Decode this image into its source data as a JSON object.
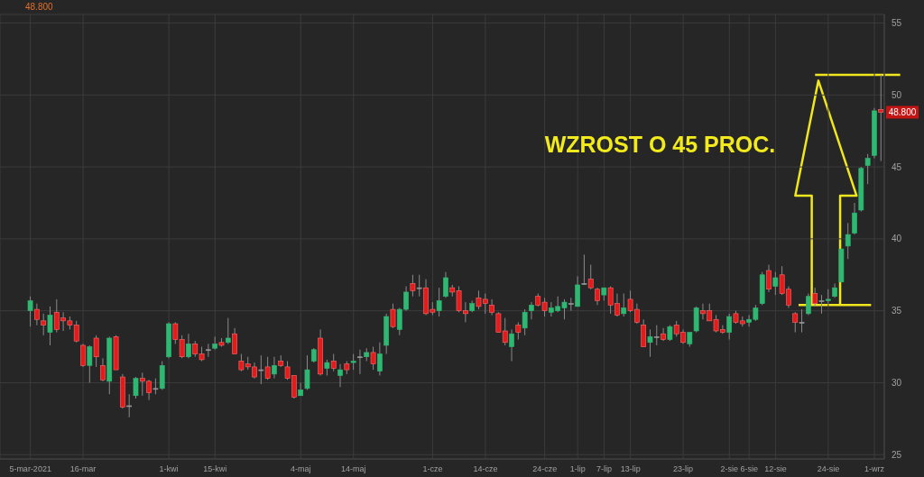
{
  "chart_data": {
    "type": "candlestick",
    "title": "48.800",
    "categories": [
      "5-mar-2021",
      null,
      null,
      null,
      null,
      null,
      null,
      null,
      "16-mar",
      null,
      null,
      null,
      null,
      null,
      null,
      null,
      null,
      null,
      null,
      null,
      null,
      "1-kwi",
      null,
      null,
      null,
      null,
      null,
      null,
      "15-kwi",
      null,
      null,
      null,
      null,
      null,
      null,
      null,
      null,
      null,
      null,
      null,
      null,
      "4-maj",
      null,
      null,
      null,
      null,
      null,
      null,
      null,
      "14-maj",
      null,
      null,
      null,
      null,
      null,
      null,
      null,
      null,
      null,
      null,
      null,
      "1-cze",
      null,
      null,
      null,
      null,
      null,
      null,
      null,
      "14-cze",
      null,
      null,
      null,
      null,
      null,
      null,
      null,
      null,
      "24-cze",
      null,
      null,
      null,
      null,
      "1-lip",
      null,
      null,
      null,
      "7-lip",
      null,
      null,
      null,
      "13-lip",
      null,
      null,
      null,
      null,
      null,
      null,
      null,
      "23-lip",
      null,
      null,
      null,
      null,
      null,
      null,
      "2-sie",
      null,
      null,
      "6-sie",
      null,
      null,
      null,
      "12-sie",
      null,
      null,
      null,
      null,
      null,
      null,
      null,
      "24-sie",
      null,
      null,
      null,
      null,
      null,
      null,
      "1-wrz",
      null
    ],
    "ohlc": [
      [
        35.0,
        36.0,
        33.9,
        35.7
      ],
      [
        35.1,
        35.5,
        34.0,
        34.4
      ],
      [
        34.3,
        34.8,
        33.3,
        34.0
      ],
      [
        33.5,
        35.3,
        32.6,
        34.7
      ],
      [
        34.9,
        35.8,
        33.5,
        33.7
      ],
      [
        34.5,
        34.9,
        33.6,
        34.3
      ],
      [
        34.3,
        34.6,
        33.7,
        34.0
      ],
      [
        34.0,
        34.3,
        32.8,
        32.9
      ],
      [
        32.6,
        32.7,
        31.1,
        31.2
      ],
      [
        31.2,
        32.6,
        30.0,
        32.5
      ],
      [
        33.1,
        33.3,
        31.1,
        31.8
      ],
      [
        31.2,
        31.7,
        30.1,
        30.2
      ],
      [
        30.1,
        33.2,
        29.2,
        33.1
      ],
      [
        33.2,
        33.3,
        30.9,
        30.9
      ],
      [
        30.4,
        30.6,
        28.2,
        28.3
      ],
      [
        28.4,
        29.2,
        27.6,
        28.4
      ],
      [
        29.1,
        30.4,
        28.9,
        30.3
      ],
      [
        30.3,
        30.7,
        29.1,
        30.1
      ],
      [
        30.1,
        30.2,
        28.8,
        29.3
      ],
      [
        29.6,
        30.3,
        29.2,
        29.6
      ],
      [
        29.6,
        31.5,
        29.5,
        31.2
      ],
      [
        31.8,
        34.2,
        31.7,
        34.1
      ],
      [
        34.1,
        34.2,
        32.7,
        33.0
      ],
      [
        33.0,
        33.3,
        31.7,
        31.8
      ],
      [
        31.8,
        33.4,
        31.7,
        32.7
      ],
      [
        32.7,
        32.9,
        31.8,
        32.0
      ],
      [
        32.0,
        32.5,
        31.5,
        31.6
      ],
      [
        32.3,
        32.7,
        31.8,
        32.3
      ],
      [
        32.4,
        33.2,
        32.3,
        32.7
      ],
      [
        32.8,
        33.1,
        32.5,
        32.6
      ],
      [
        32.8,
        34.5,
        32.7,
        33.1
      ],
      [
        33.4,
        33.8,
        32.0,
        32.0
      ],
      [
        31.5,
        32.0,
        30.8,
        30.9
      ],
      [
        31.3,
        31.8,
        30.9,
        31.1
      ],
      [
        31.1,
        31.4,
        30.3,
        30.4
      ],
      [
        30.9,
        31.9,
        29.9,
        30.9
      ],
      [
        31.1,
        31.8,
        30.2,
        30.3
      ],
      [
        30.6,
        31.8,
        30.3,
        31.2
      ],
      [
        31.5,
        31.9,
        31.1,
        31.2
      ],
      [
        31.1,
        31.5,
        30.2,
        30.3
      ],
      [
        30.5,
        30.5,
        28.9,
        29.0
      ],
      [
        29.1,
        30.0,
        29.1,
        29.5
      ],
      [
        29.6,
        31.9,
        29.5,
        30.9
      ],
      [
        31.5,
        32.4,
        31.4,
        32.3
      ],
      [
        33.1,
        33.7,
        30.5,
        30.6
      ],
      [
        31.0,
        31.6,
        30.5,
        31.4
      ],
      [
        31.5,
        32.0,
        30.8,
        31.0
      ],
      [
        30.5,
        31.3,
        29.7,
        30.9
      ],
      [
        31.3,
        31.5,
        30.6,
        30.9
      ],
      [
        31.4,
        32.0,
        30.9,
        31.5
      ],
      [
        31.8,
        32.3,
        30.6,
        31.8
      ],
      [
        31.8,
        32.4,
        31.5,
        32.1
      ],
      [
        32.1,
        32.5,
        30.9,
        31.3
      ],
      [
        30.8,
        32.8,
        30.5,
        32.0
      ],
      [
        32.6,
        34.8,
        32.0,
        34.6
      ],
      [
        35.1,
        35.5,
        33.8,
        33.9
      ],
      [
        33.7,
        35.2,
        33.3,
        35.1
      ],
      [
        35.1,
        36.7,
        35.0,
        36.3
      ],
      [
        36.9,
        37.5,
        36.0,
        36.4
      ],
      [
        36.6,
        37.5,
        36.0,
        36.6
      ],
      [
        36.6,
        37.2,
        34.7,
        34.8
      ],
      [
        35.1,
        35.6,
        34.7,
        34.9
      ],
      [
        35.0,
        36.6,
        34.6,
        35.7
      ],
      [
        36.0,
        37.7,
        35.9,
        37.3
      ],
      [
        36.6,
        36.8,
        36.0,
        36.3
      ],
      [
        36.4,
        36.7,
        34.9,
        35.0
      ],
      [
        35.0,
        35.6,
        34.2,
        34.8
      ],
      [
        35.0,
        35.7,
        34.9,
        35.5
      ],
      [
        35.9,
        36.4,
        35.1,
        35.3
      ],
      [
        35.8,
        36.2,
        34.8,
        35.5
      ],
      [
        35.4,
        35.8,
        34.7,
        34.9
      ],
      [
        34.8,
        34.9,
        33.5,
        33.5
      ],
      [
        33.6,
        34.5,
        32.6,
        32.8
      ],
      [
        32.5,
        33.7,
        31.5,
        33.4
      ],
      [
        34.0,
        34.2,
        33.0,
        33.5
      ],
      [
        33.8,
        35.1,
        33.3,
        34.9
      ],
      [
        35.0,
        35.6,
        34.4,
        35.4
      ],
      [
        36.0,
        36.2,
        35.3,
        35.4
      ],
      [
        35.6,
        35.9,
        34.6,
        35.0
      ],
      [
        34.9,
        35.6,
        34.6,
        35.2
      ],
      [
        35.0,
        36.0,
        34.9,
        35.3
      ],
      [
        35.2,
        35.8,
        34.4,
        35.6
      ],
      [
        35.5,
        35.9,
        35.0,
        35.5
      ],
      [
        35.3,
        37.4,
        35.3,
        36.8
      ],
      [
        36.9,
        38.9,
        36.8,
        36.9
      ],
      [
        37.2,
        38.2,
        36.5,
        36.6
      ],
      [
        36.5,
        36.6,
        35.4,
        35.7
      ],
      [
        36.1,
        36.6,
        35.7,
        36.6
      ],
      [
        36.6,
        36.7,
        34.8,
        35.4
      ],
      [
        35.5,
        36.2,
        34.6,
        34.7
      ],
      [
        34.8,
        36.2,
        34.6,
        35.2
      ],
      [
        35.8,
        36.4,
        34.9,
        35.0
      ],
      [
        35.1,
        35.5,
        34.1,
        34.2
      ],
      [
        34.0,
        34.4,
        32.5,
        32.5
      ],
      [
        32.8,
        33.7,
        31.8,
        33.2
      ],
      [
        33.2,
        34.0,
        32.6,
        33.2
      ],
      [
        33.4,
        33.8,
        32.9,
        33.0
      ],
      [
        33.0,
        34.0,
        32.9,
        33.9
      ],
      [
        34.0,
        34.3,
        33.2,
        33.4
      ],
      [
        33.5,
        33.7,
        32.7,
        32.8
      ],
      [
        32.7,
        33.5,
        32.5,
        33.5
      ],
      [
        33.6,
        35.3,
        33.5,
        35.2
      ],
      [
        35.0,
        35.5,
        34.4,
        34.8
      ],
      [
        35.0,
        35.5,
        34.3,
        34.3
      ],
      [
        34.4,
        34.7,
        33.5,
        33.6
      ],
      [
        33.7,
        34.0,
        33.4,
        33.5
      ],
      [
        33.5,
        34.8,
        33.0,
        34.6
      ],
      [
        34.8,
        35.0,
        34.1,
        34.2
      ],
      [
        34.3,
        34.6,
        33.9,
        34.1
      ],
      [
        34.2,
        34.7,
        33.9,
        34.4
      ],
      [
        34.4,
        35.4,
        34.3,
        35.2
      ],
      [
        35.5,
        37.7,
        35.4,
        37.5
      ],
      [
        37.8,
        38.2,
        36.3,
        36.5
      ],
      [
        36.7,
        37.7,
        36.1,
        37.3
      ],
      [
        37.5,
        38.1,
        36.1,
        36.2
      ],
      [
        36.5,
        36.7,
        35.2,
        35.4
      ],
      [
        34.8,
        34.9,
        33.5,
        34.2
      ],
      [
        34.2,
        35.1,
        33.5,
        34.2
      ],
      [
        34.8,
        36.2,
        34.7,
        36.0
      ],
      [
        36.2,
        36.6,
        35.3,
        35.5
      ],
      [
        35.7,
        36.1,
        34.8,
        35.7
      ],
      [
        35.7,
        36.5,
        35.5,
        35.8
      ],
      [
        36.0,
        36.9,
        35.9,
        36.6
      ],
      [
        37.0,
        39.3,
        37.0,
        39.3
      ],
      [
        39.5,
        41.1,
        38.6,
        40.3
      ],
      [
        40.4,
        42.5,
        40.3,
        41.8
      ],
      [
        42.0,
        45.0,
        41.9,
        44.9
      ],
      [
        45.1,
        45.9,
        43.8,
        45.6
      ],
      [
        45.8,
        49.1,
        45.6,
        48.9
      ],
      [
        49.0,
        51.4,
        45.4,
        48.8
      ]
    ],
    "colors": [
      "#2eb872",
      "#e31b1b",
      "#e31b1b",
      "#2eb872",
      "#e31b1b",
      "#e31b1b",
      "#e31b1b",
      "#e31b1b",
      "#e31b1b",
      "#2eb872",
      "#e31b1b",
      "#e31b1b",
      "#2eb872",
      "#e31b1b",
      "#e31b1b",
      "#9a9a9a",
      "#2eb872",
      "#e31b1b",
      "#e31b1b",
      "#9a9a9a",
      "#2eb872",
      "#2eb872",
      "#e31b1b",
      "#e31b1b",
      "#2eb872",
      "#e31b1b",
      "#e31b1b",
      "#9a9a9a",
      "#2eb872",
      "#e31b1b",
      "#2eb872",
      "#e31b1b",
      "#e31b1b",
      "#e31b1b",
      "#e31b1b",
      "#9a9a9a",
      "#e31b1b",
      "#2eb872",
      "#e31b1b",
      "#e31b1b",
      "#e31b1b",
      "#2eb872",
      "#2eb872",
      "#2eb872",
      "#e31b1b",
      "#2eb872",
      "#e31b1b",
      "#2eb872",
      "#e31b1b",
      "#2eb872",
      "#9a9a9a",
      "#2eb872",
      "#e31b1b",
      "#2eb872",
      "#2eb872",
      "#e31b1b",
      "#2eb872",
      "#2eb872",
      "#e31b1b",
      "#9a9a9a",
      "#e31b1b",
      "#e31b1b",
      "#2eb872",
      "#2eb872",
      "#e31b1b",
      "#e31b1b",
      "#e31b1b",
      "#2eb872",
      "#e31b1b",
      "#e31b1b",
      "#e31b1b",
      "#e31b1b",
      "#e31b1b",
      "#2eb872",
      "#e31b1b",
      "#2eb872",
      "#2eb872",
      "#e31b1b",
      "#e31b1b",
      "#2eb872",
      "#2eb872",
      "#2eb872",
      "#9a9a9a",
      "#2eb872",
      "#9a9a9a",
      "#e31b1b",
      "#e31b1b",
      "#2eb872",
      "#e31b1b",
      "#e31b1b",
      "#2eb872",
      "#e31b1b",
      "#e31b1b",
      "#e31b1b",
      "#2eb872",
      "#9a9a9a",
      "#e31b1b",
      "#2eb872",
      "#e31b1b",
      "#e31b1b",
      "#2eb872",
      "#2eb872",
      "#e31b1b",
      "#e31b1b",
      "#e31b1b",
      "#e31b1b",
      "#2eb872",
      "#e31b1b",
      "#e31b1b",
      "#2eb872",
      "#2eb872",
      "#2eb872",
      "#e31b1b",
      "#2eb872",
      "#e31b1b",
      "#e31b1b",
      "#e31b1b",
      "#9a9a9a",
      "#2eb872",
      "#e31b1b",
      "#9a9a9a",
      "#2eb872",
      "#2eb872",
      "#2eb872",
      "#2eb872",
      "#2eb872",
      "#2eb872",
      "#2eb872",
      "#2eb872",
      "#e31b1b"
    ],
    "ylim": [
      24.7,
      55.6
    ],
    "yticks": [
      25,
      30,
      35,
      40,
      45,
      50,
      55
    ],
    "grid": true,
    "annotations": [
      "WZROST O 45 PROC.",
      {
        "text": "48.800",
        "y": 48.8
      }
    ]
  }
}
